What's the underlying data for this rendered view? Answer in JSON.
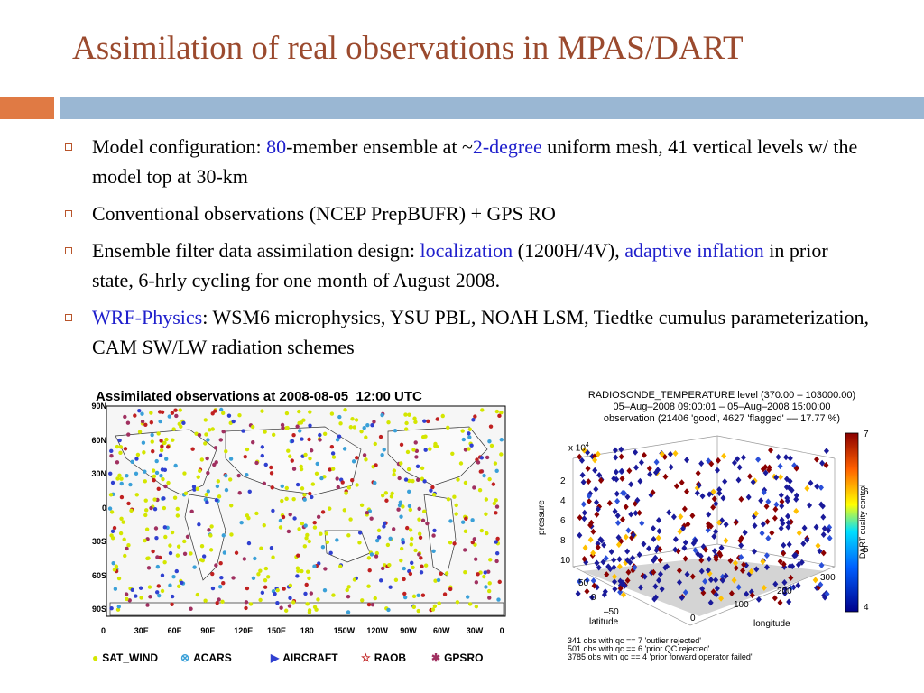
{
  "slide": {
    "title": "Assimilation of real observations in MPAS/DART",
    "accent_orange": "#e07a44",
    "accent_blue": "#9ab7d3",
    "highlight_color": "#1f1fcc"
  },
  "bullets": [
    {
      "parts": [
        {
          "t": "Model configuration: "
        },
        {
          "t": "80",
          "hl": true
        },
        {
          "t": "-member ensemble at ~"
        },
        {
          "t": "2-degree",
          "hl": true
        },
        {
          "t": " uniform mesh, 41 vertical levels w/ the model top at 30-km"
        }
      ]
    },
    {
      "parts": [
        {
          "t": "Conventional observations (NCEP PrepBUFR) + GPS RO"
        }
      ]
    },
    {
      "parts": [
        {
          "t": "Ensemble filter data assimilation design: "
        },
        {
          "t": "localization",
          "hl": true
        },
        {
          "t": " (1200H/4V), "
        },
        {
          "t": "adaptive inflation",
          "hl": true
        },
        {
          "t": " in prior state, 6-hrly cycling for one month of August 2008."
        }
      ]
    },
    {
      "parts": [
        {
          "t": "WRF-Physics",
          "hl": true
        },
        {
          "t": ": WSM6 microphysics, YSU PBL, NOAH LSM, Tiedtke cumulus parameterization, CAM SW/LW radiation schemes"
        }
      ]
    }
  ],
  "map_figure": {
    "title": "Assimilated observations at 2008-08-05_12:00 UTC",
    "lat_ticks": [
      "90N",
      "60N",
      "30N",
      "0",
      "30S",
      "60S",
      "90S"
    ],
    "lon_ticks": [
      "0",
      "30E",
      "60E",
      "90E",
      "120E",
      "150E",
      "180",
      "150W",
      "120W",
      "90W",
      "60W",
      "30W",
      "0"
    ],
    "legend": [
      {
        "label": "SAT_WIND",
        "symbol": "●",
        "color": "#d4e600"
      },
      {
        "label": "ACARS",
        "symbol": "⊗",
        "color": "#3aa0d8"
      },
      {
        "label": "AIRCRAFT",
        "symbol": "▶",
        "color": "#3040d0"
      },
      {
        "label": "RAOB",
        "symbol": "☆",
        "color": "#c02020"
      },
      {
        "label": "GPSRO",
        "symbol": "✱",
        "color": "#a03060"
      }
    ]
  },
  "qc_figure": {
    "title_lines": [
      "RADIOSONDE_TEMPERATURE level (370.00 – 103000.00)",
      "05–Aug–2008 09:00:01 – 05–Aug–2008 15:00:00",
      "observation (21406 'good', 4627 'flagged' –– 17.77 %)"
    ],
    "exponent_label": "x 10",
    "exponent_power": "4",
    "zlabel": "pressure",
    "z_ticks": [
      "2",
      "4",
      "6",
      "8",
      "10"
    ],
    "lat_ticks": [
      "50",
      "0",
      "–50"
    ],
    "lon_ticks": [
      "0",
      "100",
      "200",
      "300"
    ],
    "xlabel": "latitude",
    "ylabel": "longitude",
    "colorbar_label": "DART quality control",
    "colorbar_ticks": [
      "7",
      "6",
      "5",
      "4"
    ],
    "notes": [
      "341 obs with qc == 7 'outlier rejected'",
      "501 obs with qc == 6 'prior QC rejected'",
      "3785 obs with qc == 4 'prior forward operator failed'"
    ]
  }
}
